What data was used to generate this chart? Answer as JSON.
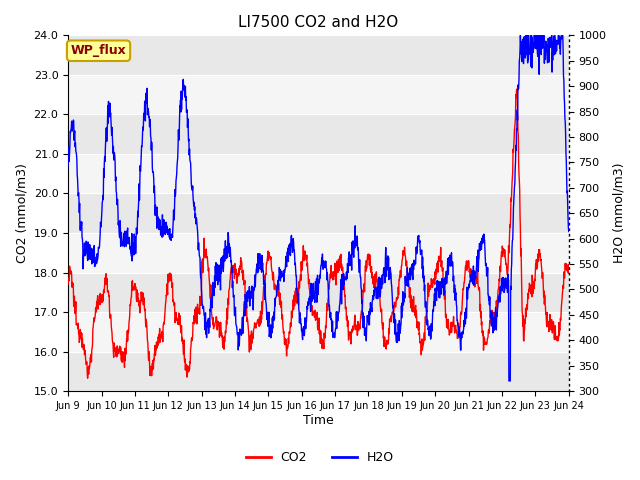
{
  "title": "LI7500 CO2 and H2O",
  "xlabel": "Time",
  "ylabel_left": "CO2 (mmol/m3)",
  "ylabel_right": "H2O (mmol/m3)",
  "ylim_left": [
    15.0,
    24.0
  ],
  "ylim_right": [
    300,
    1000
  ],
  "yticks_left": [
    15.0,
    16.0,
    17.0,
    18.0,
    19.0,
    20.0,
    21.0,
    22.0,
    23.0,
    24.0
  ],
  "yticks_right": [
    300,
    350,
    400,
    450,
    500,
    550,
    600,
    650,
    700,
    750,
    800,
    850,
    900,
    950,
    1000
  ],
  "xtick_labels": [
    "Jun 9",
    "Jun 10",
    "Jun 11",
    "Jun 12",
    "Jun 13",
    "Jun 14",
    "Jun 15",
    "Jun 16",
    "Jun 17",
    "Jun 18",
    "Jun 19",
    "Jun 20",
    "Jun 21",
    "Jun 22",
    "Jun 23",
    "Jun 24"
  ],
  "co2_color": "#ff0000",
  "h2o_color": "#0000ff",
  "plot_bg_color": "#ffffff",
  "stripe_color_dark": "#e8e8e8",
  "stripe_color_light": "#f5f5f5",
  "annotation_text": "WP_flux",
  "annotation_color": "#8b0000",
  "annotation_bg": "#ffff99",
  "annotation_border": "#c8a000",
  "linewidth": 1.0,
  "n_days": 15,
  "pts_per_day": 96
}
